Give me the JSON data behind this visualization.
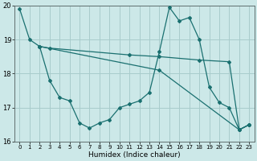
{
  "xlabel": "Humidex (Indice chaleur)",
  "bg_color": "#cce8e8",
  "line_color": "#1a7070",
  "grid_color": "#a8cccc",
  "xlim": [
    -0.5,
    23.5
  ],
  "ylim": [
    16,
    20
  ],
  "yticks": [
    16,
    17,
    18,
    19,
    20
  ],
  "xticks": [
    0,
    1,
    2,
    3,
    4,
    5,
    6,
    7,
    8,
    9,
    10,
    11,
    12,
    13,
    14,
    15,
    16,
    17,
    18,
    19,
    20,
    21,
    22,
    23
  ],
  "line1_x": [
    0,
    1,
    2,
    3,
    4,
    5,
    6,
    7,
    8,
    9,
    10,
    11,
    12,
    13,
    14,
    15,
    16,
    17,
    18,
    19,
    20,
    21,
    22,
    23
  ],
  "line1_y": [
    19.9,
    19.0,
    18.8,
    17.8,
    17.3,
    17.2,
    16.55,
    16.4,
    16.55,
    16.65,
    17.0,
    17.1,
    17.2,
    17.45,
    18.65,
    19.95,
    19.55,
    19.65,
    19.0,
    17.6,
    17.15,
    17.0,
    16.35,
    16.5
  ],
  "line2_x": [
    2,
    3,
    11,
    14,
    18,
    21,
    22,
    23
  ],
  "line2_y": [
    18.8,
    18.75,
    18.55,
    18.5,
    18.4,
    18.35,
    16.35,
    16.5
  ],
  "line3_x": [
    2,
    14,
    22,
    23
  ],
  "line3_y": [
    18.8,
    18.1,
    16.35,
    16.5
  ]
}
